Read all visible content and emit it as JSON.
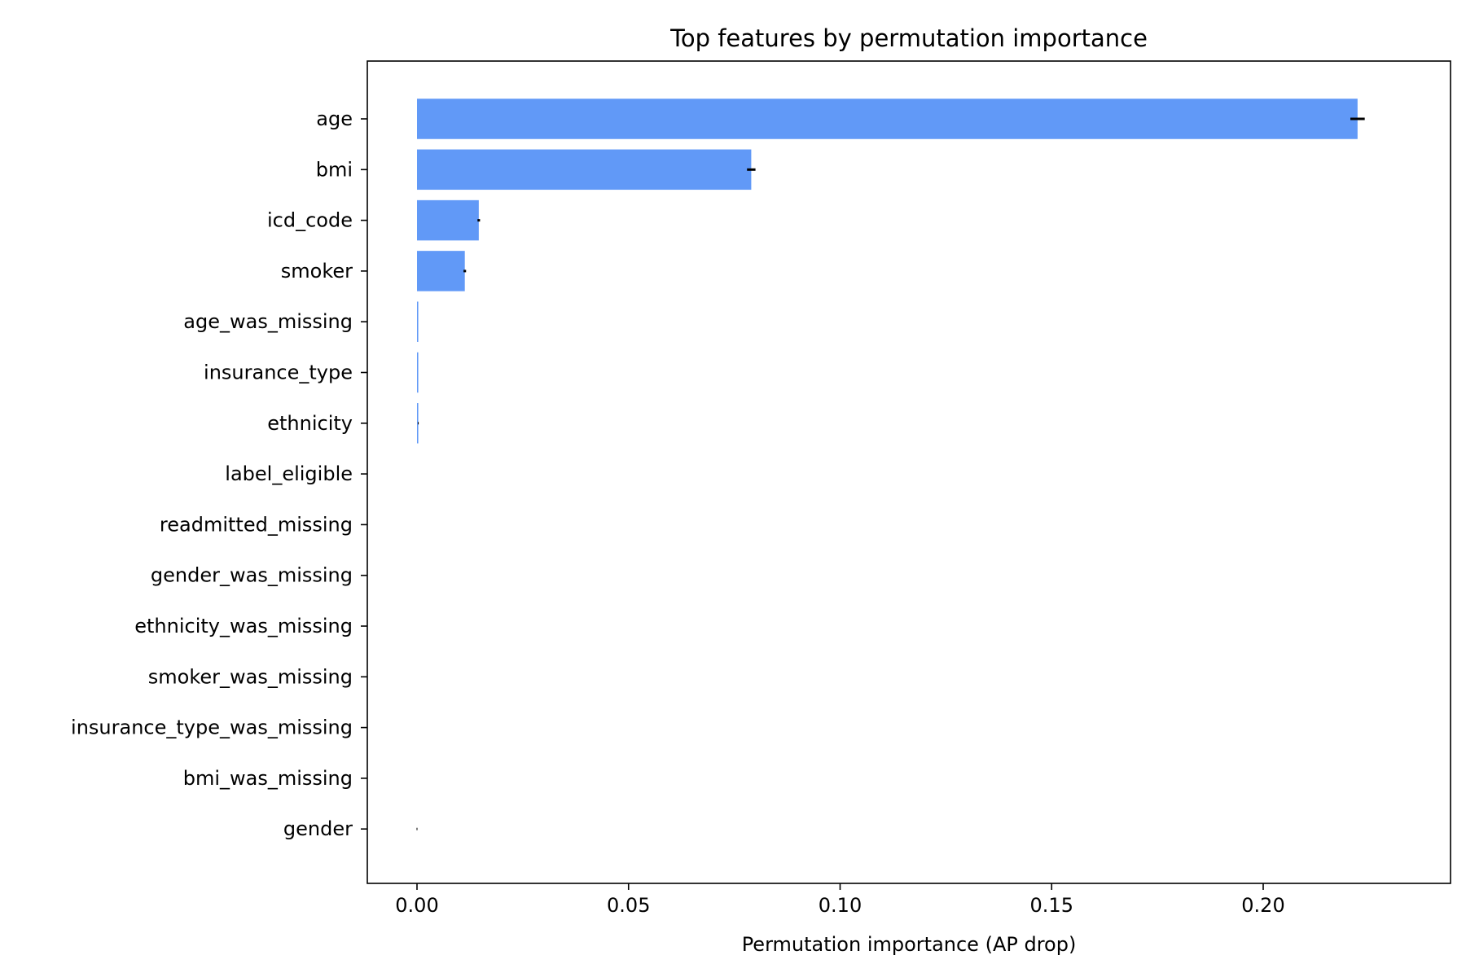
{
  "chart_data": {
    "type": "bar",
    "orientation": "horizontal",
    "title": "Top features by permutation importance",
    "xlabel": "Permutation importance (AP drop)",
    "ylabel": "",
    "xlim": [
      -0.0112,
      0.2355
    ],
    "xticks": [
      0.0,
      0.05,
      0.1,
      0.15,
      0.2
    ],
    "xtick_labels": [
      "0.00",
      "0.05",
      "0.10",
      "0.15",
      "0.20"
    ],
    "grid": false,
    "bar_color": "#6199f7",
    "error_color": "#000000",
    "categories": [
      "age",
      "bmi",
      "icd_code",
      "smoker",
      "age_was_missing",
      "insurance_type",
      "ethnicity",
      "label_eligible",
      "readmitted_missing",
      "gender_was_missing",
      "ethnicity_was_missing",
      "smoker_was_missing",
      "insurance_type_was_missing",
      "bmi_was_missing",
      "gender"
    ],
    "values": [
      0.2223,
      0.079,
      0.0146,
      0.0113,
      0.0003,
      0.0003,
      0.0003,
      0,
      0,
      0,
      0,
      0,
      0,
      0,
      0
    ],
    "errors": [
      0.0017,
      0.001,
      0.0003,
      0.0003,
      0,
      0,
      0.0001,
      0,
      0,
      0,
      0,
      0,
      0,
      0,
      0.0001
    ]
  }
}
